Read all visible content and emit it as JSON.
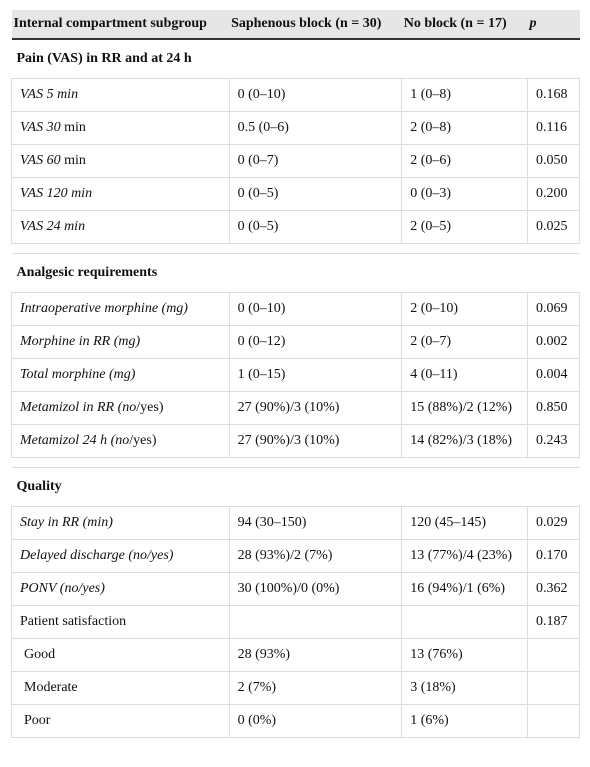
{
  "header": [
    "Internal compartment subgroup",
    "Saphenous block (n = 30)",
    "No block (n = 17)",
    "p"
  ],
  "sections": [
    {
      "title": "Pain (VAS) in RR and at 24 h",
      "rows": [
        {
          "label": [
            "VAS 5 min"
          ],
          "saphenous": "0 (0–10)",
          "no_block": "1 (0–8)",
          "p": "0.168"
        },
        {
          "label": [
            "VAS 30",
            " min"
          ],
          "saphenous": "0.5 (0–6)",
          "no_block": "2 (0–8)",
          "p": "0.116"
        },
        {
          "label": [
            "VAS 60",
            " min"
          ],
          "saphenous": "0 (0–7)",
          "no_block": "2 (0–6)",
          "p": "0.050"
        },
        {
          "label": [
            "VAS 120 min"
          ],
          "saphenous": "0 (0–5)",
          "no_block": "0 (0–3)",
          "p": "0.200"
        },
        {
          "label": [
            "VAS 24 min"
          ],
          "saphenous": "0 (0–5)",
          "no_block": "2 (0–5)",
          "p": "0.025"
        }
      ]
    },
    {
      "title": "Analgesic requirements",
      "rows": [
        {
          "label": [
            "Intraoperative morphine (mg)"
          ],
          "saphenous": "0 (0–10)",
          "no_block": "2 (0–10)",
          "p": "0.069"
        },
        {
          "label": [
            "Morphine in RR (mg)"
          ],
          "saphenous": "0 (0–12)",
          "no_block": "2 (0–7)",
          "p": "0.002"
        },
        {
          "label": [
            "Total morphine (mg)"
          ],
          "saphenous": "1 (0–15)",
          "no_block": "4 (0–11)",
          "p": "0.004"
        },
        {
          "label": [
            "Metamizol in RR (no",
            "/yes)"
          ],
          "saphenous": "27 (90%)/3 (10%)",
          "no_block": "15 (88%)/2 (12%)",
          "p": "0.850"
        },
        {
          "label": [
            "Metamizol 24 h (no",
            "/yes)"
          ],
          "saphenous": "27 (90%)/3 (10%)",
          "no_block": "14 (82%)/3 (18%)",
          "p": "0.243"
        }
      ]
    },
    {
      "title": "Quality",
      "rows": [
        {
          "label": [
            "Stay in RR (min)"
          ],
          "saphenous": "94 (30–150)",
          "no_block": "120 (45–145)",
          "p": "0.029"
        },
        {
          "label": [
            "Delayed discharge (no/yes)"
          ],
          "saphenous": "28 (93%)/2 (7%)",
          "no_block": "13 (77%)/4 (23%)",
          "p": "0.170"
        },
        {
          "label": [
            "PONV (no/yes)"
          ],
          "saphenous": "30 (100%)/0 (0%)",
          "no_block": "16 (94%)/1 (6%)",
          "p": "0.362"
        },
        {
          "label": [
            "Patient satisfaction"
          ],
          "p": "0.187"
        },
        {
          "label": [
            "Good"
          ],
          "saphenous": "28 (93%)",
          "no_block": "13 (76%)"
        },
        {
          "label": [
            "Moderate"
          ],
          "saphenous": "2 (7%)",
          "no_block": "3 (18%)"
        },
        {
          "label": [
            "Poor"
          ],
          "saphenous": "0 (0%)",
          "no_block": "1 (6%)"
        }
      ]
    }
  ]
}
